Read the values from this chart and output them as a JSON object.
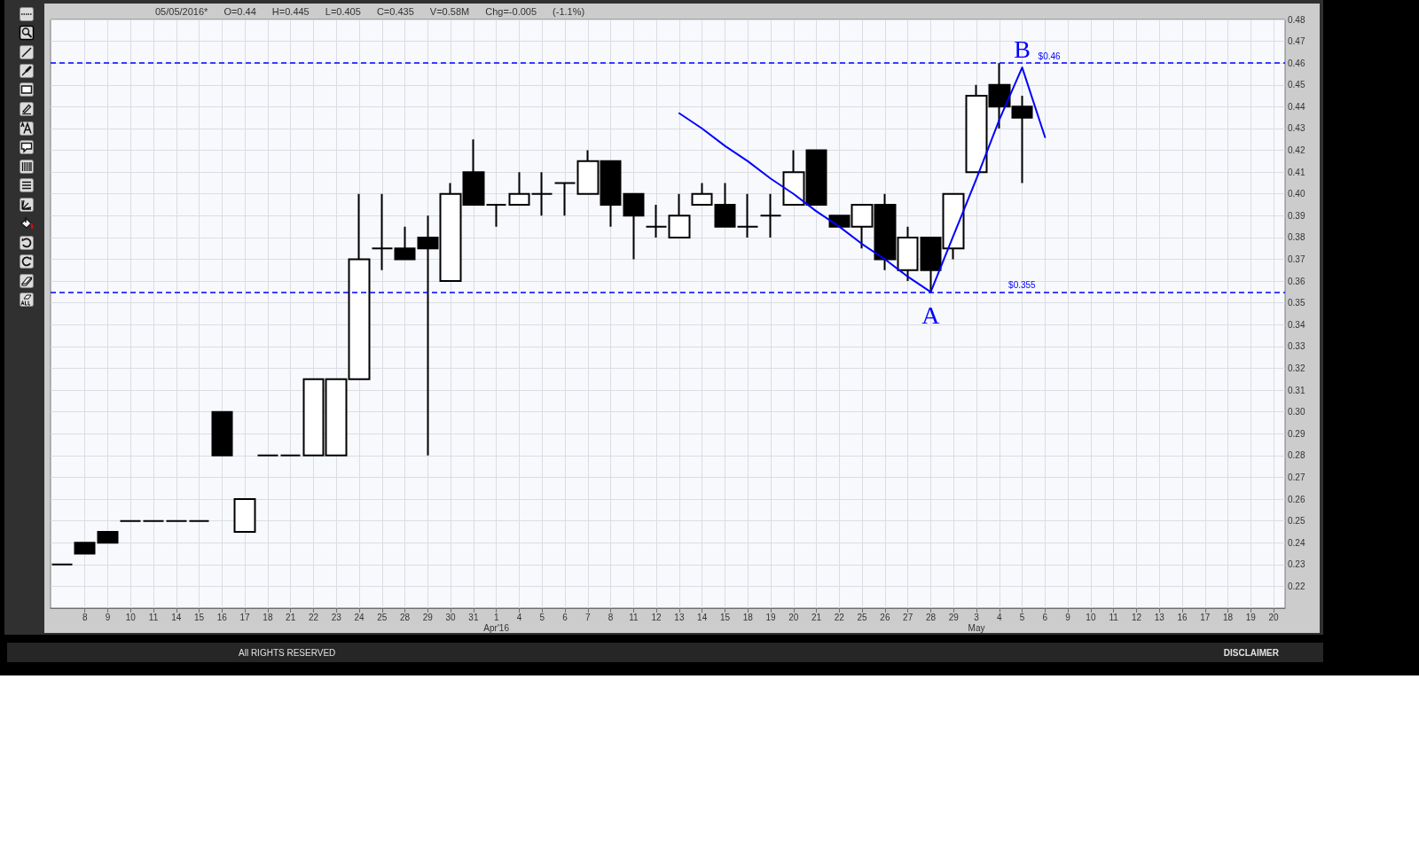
{
  "chart_data": {
    "type": "candlestick",
    "subtitle": "05/05/2016* O=0.44 H=0.445 L=0.405 C=0.435 V=0.58M Chg=-0.005 (-1.1%)",
    "categories": [
      null,
      "8",
      "9",
      "10",
      "11",
      "14",
      "15",
      "16",
      "17",
      "18",
      "21",
      "22",
      "23",
      "24",
      "25",
      "28",
      "29",
      "30",
      "31",
      "1\nApr'16",
      "4",
      "5",
      "6",
      "7",
      "8",
      "11",
      "12",
      "13",
      "14",
      "15",
      "18",
      "19",
      "20",
      "21",
      "22",
      "25",
      "26",
      "27",
      "28",
      "29",
      "3\nMay",
      "4",
      "5",
      "6",
      "9",
      "10",
      "11",
      "12",
      "13",
      "16",
      "17",
      "18",
      "19",
      "20"
    ],
    "ohlc": [
      [
        0.23,
        0.23,
        0.23,
        0.23
      ],
      [
        0.24,
        0.24,
        0.235,
        0.235
      ],
      [
        0.245,
        0.245,
        0.24,
        0.24
      ],
      [
        0.25,
        0.25,
        0.25,
        0.25
      ],
      [
        0.25,
        0.25,
        0.25,
        0.25
      ],
      [
        0.25,
        0.25,
        0.25,
        0.25
      ],
      [
        0.25,
        0.25,
        0.25,
        0.25
      ],
      [
        0.3,
        0.3,
        0.28,
        0.28
      ],
      [
        0.245,
        0.26,
        0.245,
        0.26
      ],
      [
        0.28,
        0.28,
        0.28,
        0.28
      ],
      [
        0.28,
        0.28,
        0.28,
        0.28
      ],
      [
        0.28,
        0.315,
        0.28,
        0.315
      ],
      [
        0.28,
        0.315,
        0.28,
        0.315
      ],
      [
        0.315,
        0.4,
        0.315,
        0.37
      ],
      [
        0.375,
        0.4,
        0.365,
        0.375
      ],
      [
        0.375,
        0.385,
        0.37,
        0.37
      ],
      [
        0.38,
        0.39,
        0.28,
        0.375
      ],
      [
        0.36,
        0.405,
        0.36,
        0.4
      ],
      [
        0.41,
        0.425,
        0.395,
        0.395
      ],
      [
        0.395,
        0.395,
        0.385,
        0.395
      ],
      [
        0.395,
        0.41,
        0.395,
        0.4
      ],
      [
        0.4,
        0.41,
        0.39,
        0.4
      ],
      [
        0.405,
        0.405,
        0.39,
        0.405
      ],
      [
        0.4,
        0.42,
        0.4,
        0.415
      ],
      [
        0.415,
        0.415,
        0.385,
        0.395
      ],
      [
        0.4,
        0.4,
        0.37,
        0.39
      ],
      [
        0.385,
        0.395,
        0.38,
        0.385
      ],
      [
        0.38,
        0.4,
        0.38,
        0.39
      ],
      [
        0.395,
        0.405,
        0.395,
        0.4
      ],
      [
        0.395,
        0.405,
        0.385,
        0.385
      ],
      [
        0.385,
        0.4,
        0.38,
        0.385
      ],
      [
        0.39,
        0.4,
        0.38,
        0.39
      ],
      [
        0.395,
        0.42,
        0.395,
        0.41
      ],
      [
        0.42,
        0.42,
        0.395,
        0.395
      ],
      [
        0.39,
        0.39,
        0.385,
        0.385
      ],
      [
        0.385,
        0.395,
        0.375,
        0.395
      ],
      [
        0.395,
        0.4,
        0.365,
        0.37
      ],
      [
        0.365,
        0.385,
        0.36,
        0.38
      ],
      [
        0.38,
        0.38,
        0.355,
        0.365
      ],
      [
        0.375,
        0.4,
        0.37,
        0.4
      ],
      [
        0.41,
        0.45,
        0.41,
        0.445
      ],
      [
        0.45,
        0.46,
        0.43,
        0.44
      ],
      [
        0.44,
        0.445,
        0.405,
        0.435
      ],
      null,
      null,
      null,
      null,
      null,
      null,
      null,
      null,
      null,
      null,
      null
    ],
    "color": "#000000",
    "colors": [
      "#000000",
      "#000000",
      "#000000",
      "#000000",
      "#000000",
      "#000000",
      "#000000",
      "#000000",
      "#ffffff",
      "#000000",
      "#000000",
      "#ffffff",
      "#ffffff",
      "#ffffff",
      "#000000",
      "#000000",
      "#000000",
      "#ffffff",
      "#000000",
      "#000000",
      "#ffffff",
      "#000000",
      "#000000",
      "#ffffff",
      "#000000",
      "#000000",
      "#000000",
      "#ffffff",
      "#ffffff",
      "#000000",
      "#000000",
      "#000000",
      "#ffffff",
      "#000000",
      "#000000",
      "#ffffff",
      "#000000",
      "#ffffff",
      "#000000",
      "#ffffff",
      "#ffffff",
      "#000000",
      "#000000",
      null,
      null,
      null,
      null,
      null,
      null,
      null,
      null,
      null,
      null,
      null
    ],
    "series": [
      {
        "type": "line",
        "color": "#0000ff",
        "values": [
          null,
          null,
          null,
          null,
          null,
          null,
          null,
          null,
          null,
          null,
          null,
          null,
          null,
          null,
          null,
          null,
          null,
          null,
          null,
          null,
          null,
          null,
          null,
          null,
          null,
          null,
          null,
          0.437,
          0.43,
          0.422,
          0.415,
          0.407,
          0.4,
          0.392,
          0.385,
          0.377,
          0.37,
          0.362,
          0.355,
          0.381,
          0.407,
          0.434,
          0.458,
          0.426,
          null,
          null,
          null,
          null,
          null,
          null,
          null,
          null,
          null,
          null
        ]
      }
    ],
    "ylim": [
      0.21,
      0.48
    ],
    "yticks": [
      0.22,
      0.23,
      0.24,
      0.25,
      0.26,
      0.27,
      0.28,
      0.29,
      {
        "value": 0.3,
        "label": "0.30"
      },
      0.31,
      0.32,
      0.33,
      0.34,
      0.35,
      0.36,
      0.37,
      0.38,
      0.39,
      {
        "value": 0.4,
        "label": "0.40"
      },
      0.41,
      0.42,
      0.43,
      0.44,
      0.45,
      0.46,
      0.47,
      0.48
    ],
    "grid": true,
    "ref_lines": [
      {
        "axis": "y",
        "value": 0.46,
        "label": "$0.46",
        "color": "#0000ff",
        "line_style": "dashed"
      },
      {
        "axis": "y",
        "value": 0.355,
        "label": "$0.355",
        "color": "#0000ff",
        "line_style": "dashed"
      }
    ],
    "annotations": [
      "A",
      "B",
      "All RIGHTS RESERVED",
      "DISCLAIMER"
    ]
  }
}
